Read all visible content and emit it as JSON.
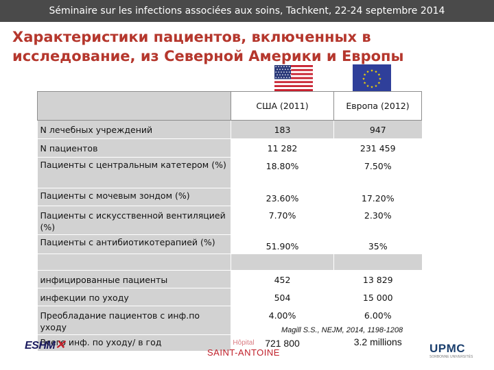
{
  "header": {
    "seminar": "Séminaire sur les infections associées aux soins, Tachkent, 22-24 septembre 2014",
    "title": "Характеристики пациентов, включенных в исследование, из Северной Америки и Европы"
  },
  "flags": {
    "us": "us-flag",
    "eu": "eu-flag"
  },
  "table": {
    "columns": [
      "США (2011)",
      "Европа (2012)"
    ],
    "rows": [
      {
        "label": "N лечебных учреждений",
        "usa": "183",
        "europe": "947"
      },
      {
        "label": "N  пациентов",
        "usa": "11 282",
        "europe": "231 459"
      },
      {
        "label": "Пациенты с центральным катетером (%)",
        "usa": "18.80%",
        "europe": "7.50%"
      },
      {
        "label": "Пациенты с мочевым зондом  (%)",
        "usa": "23.60%",
        "europe": "17.20%"
      },
      {
        "label": "Пациенты с искусственной вентиляцией (%)",
        "usa": "7.70%",
        "europe": "2.30%"
      },
      {
        "label": "Пациенты с антибиотикотерапией  (%)",
        "usa": "51.90%",
        "europe": "35%"
      },
      {
        "label": "",
        "usa": "",
        "europe": ""
      },
      {
        "label": "инфицированные пациенты",
        "usa": "452",
        "europe": "13 829"
      },
      {
        "label": " инфекции по уходу",
        "usa": "504",
        "europe": "15 000"
      },
      {
        "label": "Преобладание пациентов с инф.по уходу",
        "usa": "4.00%",
        "europe": "6.00%"
      },
      {
        "label": "Всего инф. по уходу/ в год",
        "usa": "721 800",
        "europe": "3.2 millions"
      }
    ]
  },
  "citation": "Magill  S.S., NEJM, 2014, 1198-1208",
  "logos": {
    "eshm": "ESHM",
    "saint_antoine_top": "Hôpital",
    "saint_antoine": "SAINT-ANTOINE",
    "upmc": "UPMC",
    "upmc_sub": "SORBONNE UNIVERSITÉS"
  },
  "colors": {
    "header_bar": "#4a4a4a",
    "title": "#b5372d",
    "band": "#d2d2d2"
  }
}
